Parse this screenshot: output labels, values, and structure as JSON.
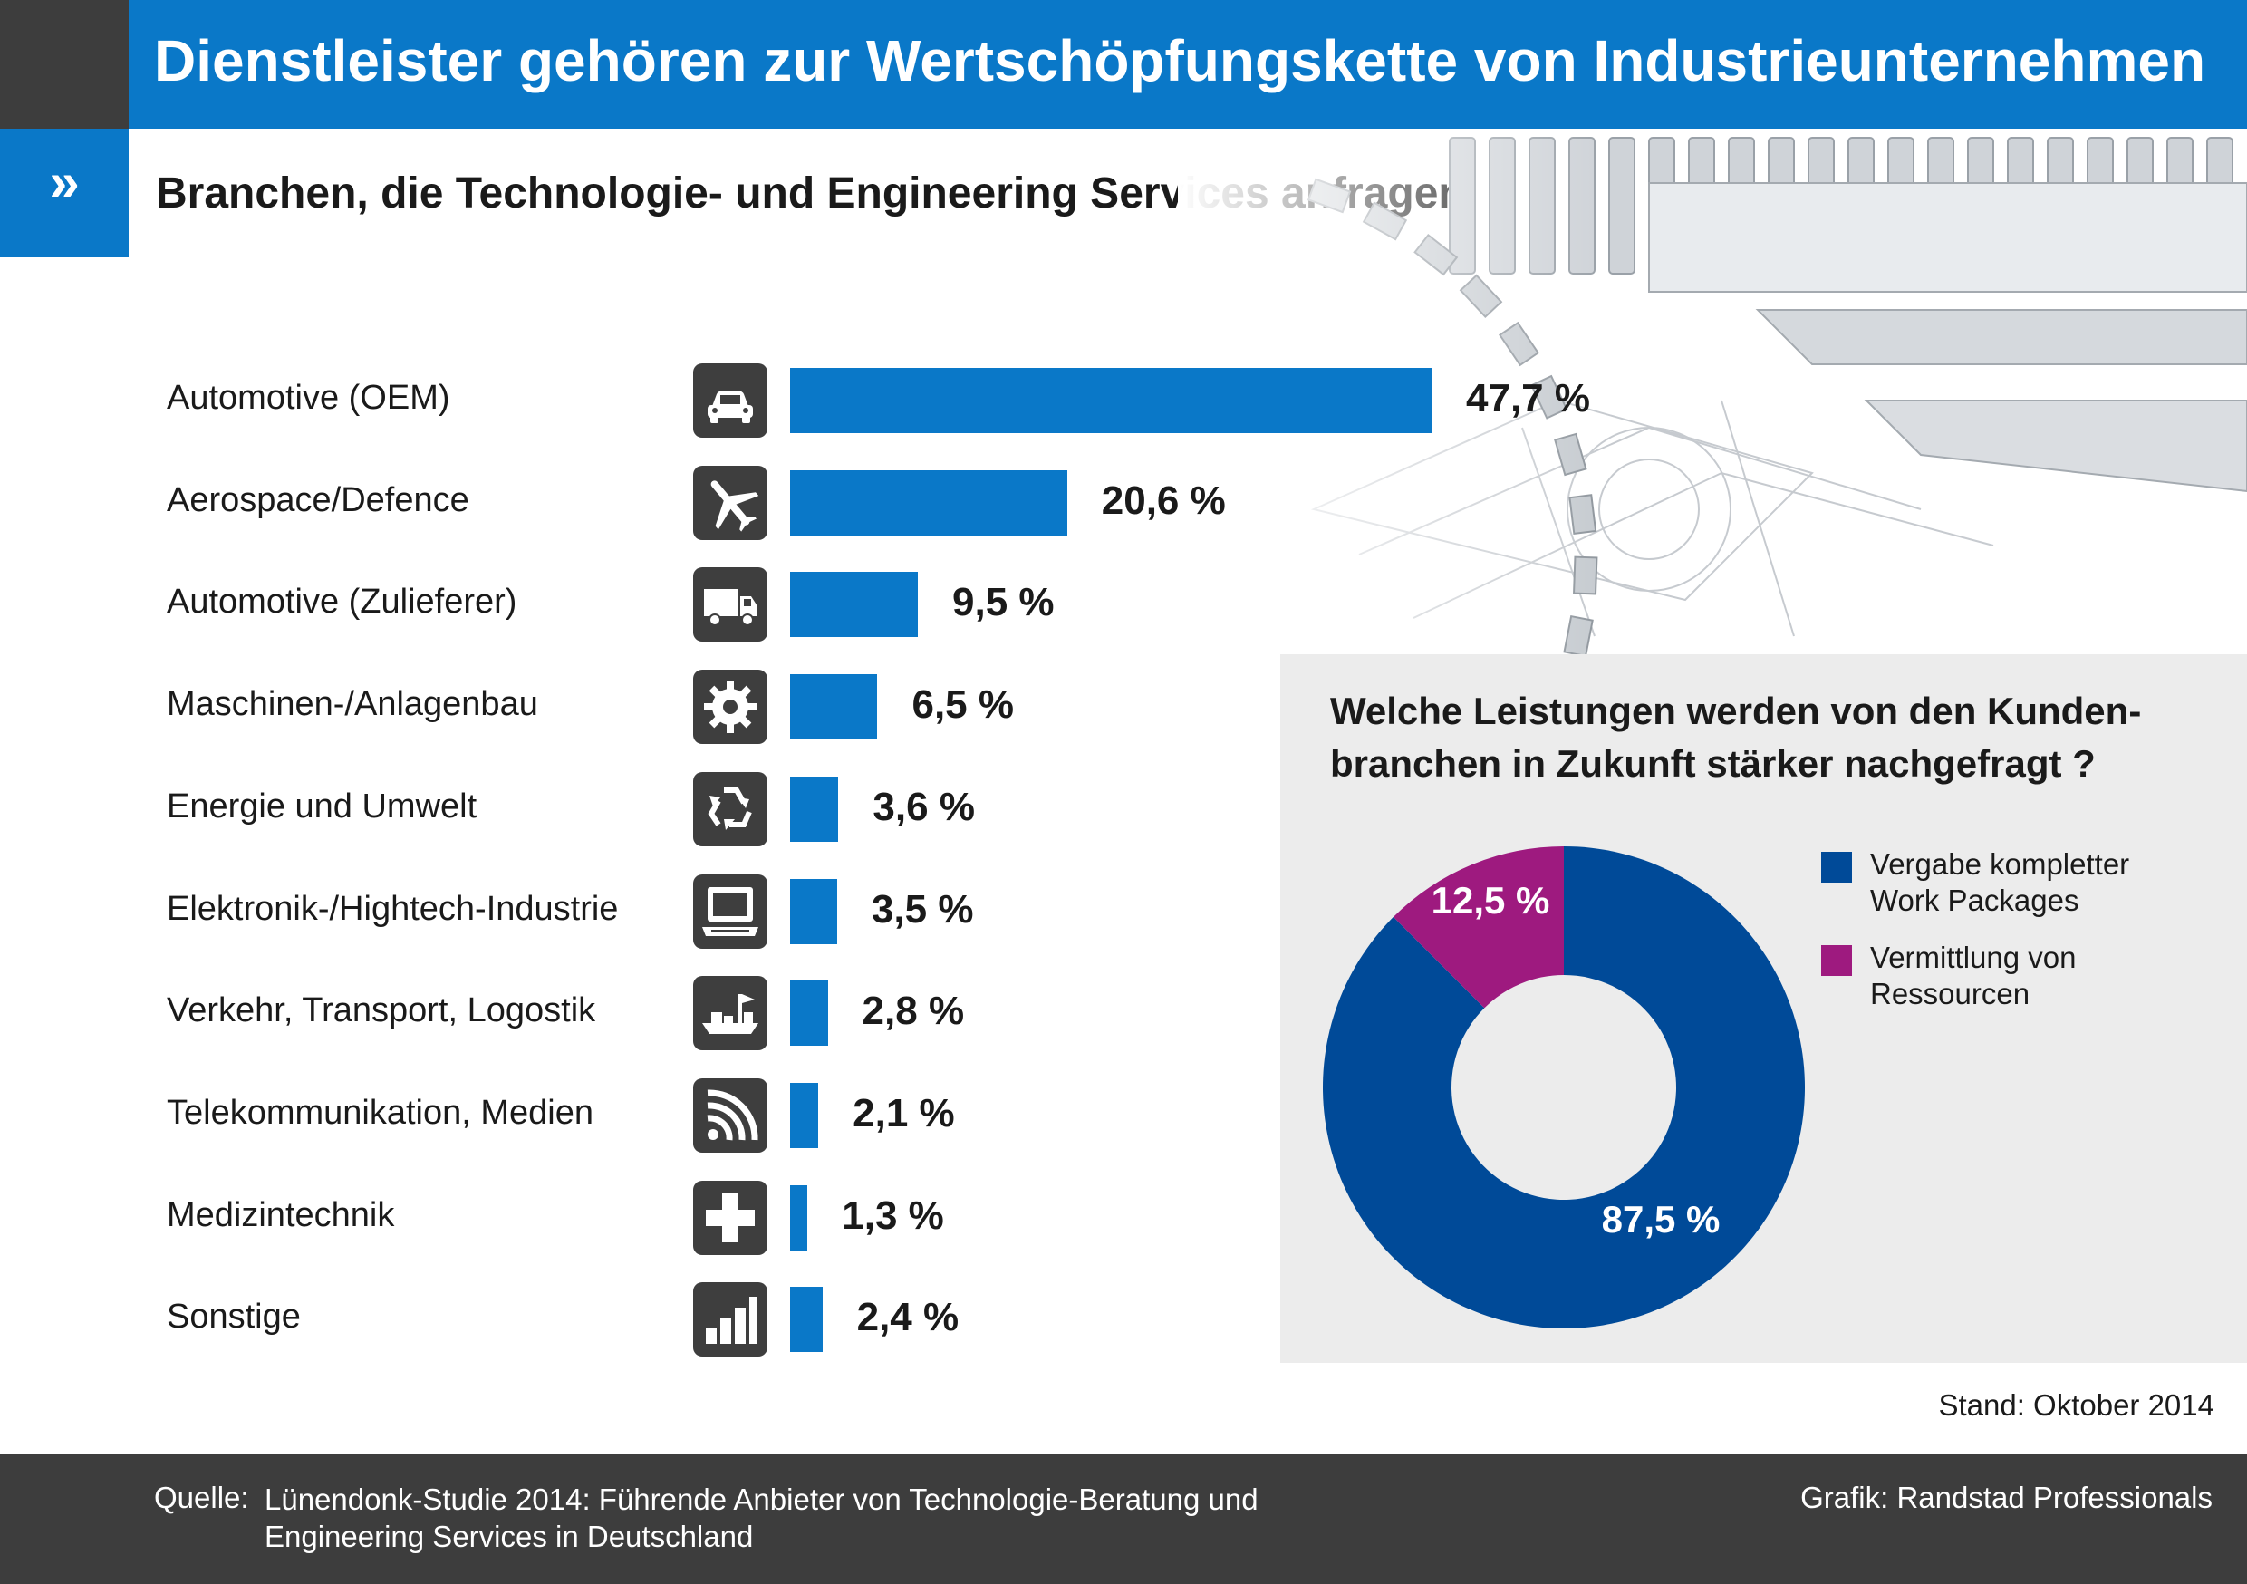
{
  "header": {
    "title": "Dienstleister gehören zur Wertschöpfungskette von Industrieunternehmen",
    "chevron": "»",
    "subtitle": "Branchen, die Technologie- und Engineering Services anfragen"
  },
  "colors": {
    "bar": "#0a78c8",
    "donut_main": "#004a98",
    "donut_minor": "#9e1a7f",
    "panel": "#ececec",
    "icon_bg": "#3e3e3e"
  },
  "chart_data": [
    {
      "type": "bar",
      "orientation": "horizontal",
      "title": "Branchen, die Technologie- und Engineering Services anfragen",
      "categories": [
        "Automotive (OEM)",
        "Aerospace/Defence",
        "Automotive (Zulieferer)",
        "Maschinen-/Anlagenbau",
        "Energie und Umwelt",
        "Elektronik-/Hightech-Industrie",
        "Verkehr, Transport, Logostik",
        "Telekommunikation, Medien",
        "Medizintechnik",
        "Sonstige"
      ],
      "values": [
        47.7,
        20.6,
        9.5,
        6.5,
        3.6,
        3.5,
        2.8,
        2.1,
        1.3,
        2.4
      ],
      "value_labels": [
        "47,7 %",
        "20,6 %",
        "9,5 %",
        "6,5 %",
        "3,6 %",
        "3,5 %",
        "2,8 %",
        "2,1 %",
        "1,3 %",
        "2,4 %"
      ],
      "icons": [
        "car-icon",
        "airplane-icon",
        "truck-icon",
        "gear-icon",
        "recycle-icon",
        "computer-icon",
        "ship-icon",
        "wifi-icon",
        "medical-cross-icon",
        "bar-chart-icon"
      ],
      "unit": "%"
    },
    {
      "type": "pie",
      "donut": true,
      "title": "Welche Leistungen werden von den Kunden-branchen in Zukunft stärker nachgefragt?",
      "labels": [
        "Vergabe kompletter Work Packages",
        "Vermittlung von Ressourcen"
      ],
      "values": [
        87.5,
        12.5
      ],
      "value_labels": [
        "87,5 %",
        "12,5 %"
      ],
      "legend_position": "right"
    }
  ],
  "panel": {
    "question_line1": "Welche Leistungen werden von den Kunden-",
    "question_line2": "branchen in Zukunft stärker nachgefragt ?",
    "legend": [
      {
        "line1": "Vergabe kompletter",
        "line2": "Work Packages"
      },
      {
        "line1": "Vermittlung von",
        "line2": "Ressourcen"
      }
    ]
  },
  "stand": "Stand: Oktober 2014",
  "footer": {
    "source_label": "Quelle:",
    "source_line1": "Lünendonk-Studie 2014: Führende Anbieter von Technologie-Beratung und",
    "source_line2": "Engineering Services in Deutschland",
    "credit": "Grafik: Randstad Professionals"
  }
}
